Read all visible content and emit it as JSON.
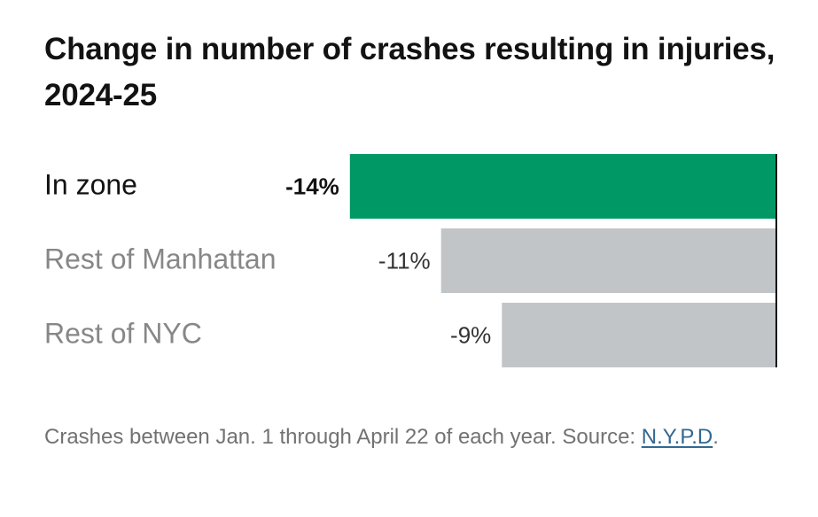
{
  "chart_data": {
    "type": "bar",
    "orientation": "horizontal",
    "title": "Change in number of crashes resulting in injuries, 2024-25",
    "categories": [
      "In zone",
      "Rest of Manhattan",
      "Rest of NYC"
    ],
    "values": [
      -14,
      -11,
      -9
    ],
    "value_labels": [
      "-14%",
      "-11%",
      "-9%"
    ],
    "highlight_index": 0,
    "unit": "%",
    "xlim": [
      -14,
      0
    ],
    "grid": false,
    "legend": "none"
  },
  "colors": {
    "highlight": "#009966",
    "bar": "#c2c5c8",
    "baseline": "#121212",
    "category_highlight": "#121212",
    "category": "#878787",
    "value_highlight": "#121212",
    "value": "#333333"
  },
  "note": {
    "text": "Crashes between Jan. 1 through April 22 of each year. Source: ",
    "source_link": "N.Y.P.D",
    "end": "."
  }
}
